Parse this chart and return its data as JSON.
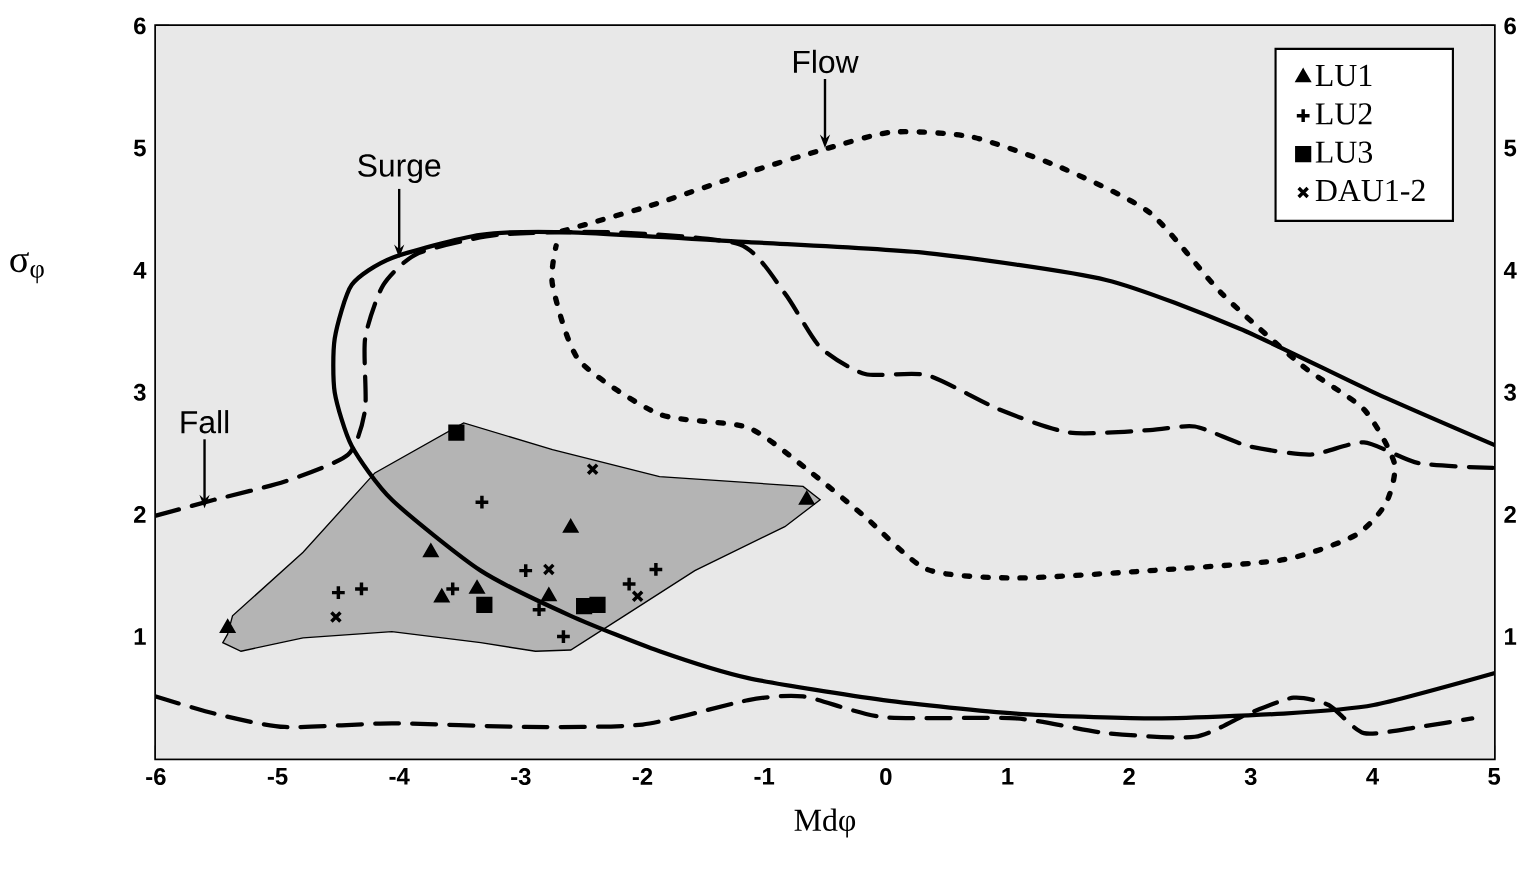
{
  "chart_data": {
    "type": "scatter",
    "xlabel": "Mdφ",
    "ylabel": "σ$_{φ}$",
    "xlim": [
      -6,
      5
    ],
    "xticks": [
      -6,
      -5,
      -4,
      -3,
      -2,
      -1,
      0,
      1,
      2,
      3,
      4,
      5
    ],
    "ylim": [
      0,
      6
    ],
    "yticks": [
      1,
      2,
      3,
      4,
      5,
      6
    ],
    "y2lim": [
      0,
      6
    ],
    "y2ticks": [
      1,
      2,
      3,
      4,
      5,
      6
    ],
    "legend": "top right",
    "annotations": [
      {
        "text": "Fall",
        "x": -5.6,
        "y": 2.05
      },
      {
        "text": "Surge",
        "x": -4.0,
        "y": 4.1
      },
      {
        "text": "Flow",
        "x": -0.5,
        "y": 5.0
      }
    ],
    "series": [
      {
        "type": "area",
        "color": "#b4b4b4",
        "x": [
          -5.41,
          -5.37,
          -4.79,
          -4.2,
          -3.47,
          -2.74,
          -1.86,
          -0.68,
          -0.54,
          -0.83,
          -1.57,
          -2.15,
          -2.59,
          -2.88,
          -3.33,
          -4.06,
          -4.79,
          -5.3,
          -5.45
        ],
        "values": [
          1.02,
          1.17,
          1.69,
          2.34,
          2.75,
          2.53,
          2.31,
          2.23,
          2.12,
          1.9,
          1.54,
          1.17,
          0.89,
          0.88,
          0.95,
          1.04,
          0.99,
          0.88,
          0.95
        ]
      },
      {
        "type": "line",
        "color": "#000000",
        "line_style": "solid",
        "x": [
          5,
          4.01,
          2.91,
          1.81,
          0.34,
          -1.13,
          -2.59,
          -3.33,
          -4.06,
          -4.39,
          -4.53,
          -4.53,
          -4.39,
          -4.06,
          -3.33,
          -2.59,
          -1.86,
          -1.13,
          -0.02,
          1.07,
          2.17,
          3.27,
          4.01,
          5
        ],
        "values": [
          2.57,
          3.0,
          3.52,
          3.92,
          4.14,
          4.23,
          4.31,
          4.29,
          4.1,
          3.88,
          3.44,
          3.0,
          2.56,
          2.12,
          1.54,
          1.17,
          0.88,
          0.66,
          0.48,
          0.37,
          0.33,
          0.37,
          0.44,
          0.7
        ]
      },
      {
        "type": "line",
        "color": "#000000",
        "line_style": "dashed",
        "x": [
          -6,
          -5.52,
          -4.94,
          -4.42,
          -4.28,
          -4.28,
          -4.13,
          -3.84,
          -3.18,
          -2.22,
          -1.2,
          -0.83,
          -0.54,
          -0.17,
          0.34,
          0.93,
          1.51,
          2.17,
          2.54,
          2.98,
          3.49,
          3.93,
          4.38,
          5,
          null,
          -6,
          -5.52,
          -4.94,
          -4.06,
          -2.96,
          -2.0,
          -1.13,
          -0.68,
          -0.02,
          1.07,
          1.81,
          2.54,
          2.98,
          3.35,
          3.64,
          3.93,
          4.38,
          4.82
        ],
        "values": [
          1.99,
          2.12,
          2.27,
          2.49,
          2.86,
          3.44,
          3.88,
          4.14,
          4.29,
          4.31,
          4.21,
          3.81,
          3.37,
          3.15,
          3.14,
          2.86,
          2.67,
          2.69,
          2.72,
          2.56,
          2.49,
          2.59,
          2.42,
          2.38,
          null,
          0.51,
          0.37,
          0.26,
          0.29,
          0.26,
          0.28,
          0.48,
          0.51,
          0.34,
          0.33,
          0.21,
          0.18,
          0.37,
          0.5,
          0.44,
          0.21,
          0.26,
          0.33
        ]
      },
      {
        "type": "line",
        "color": "#000000",
        "line_style": "dotted",
        "x": [
          -2.66,
          -1.93,
          -1.13,
          -0.54,
          0.05,
          0.71,
          1.44,
          2.17,
          2.76,
          3.42,
          3.93,
          4.18,
          4.11,
          3.86,
          3.27,
          2.17,
          1.07,
          0.34,
          -0.17,
          -0.61,
          -1.13,
          -1.86,
          -2.52,
          -2.74,
          -2.71
        ],
        "values": [
          4.32,
          4.53,
          4.8,
          4.98,
          5.13,
          5.09,
          4.84,
          4.47,
          3.81,
          3.22,
          2.86,
          2.42,
          2.09,
          1.83,
          1.63,
          1.54,
          1.48,
          1.55,
          1.98,
          2.34,
          2.71,
          2.82,
          3.26,
          3.88,
          4.2
        ]
      },
      {
        "name": "LU1",
        "color": "#000000",
        "marker": "triangle",
        "x": [
          -5.41,
          -3.74,
          -3.65,
          -3.36,
          -2.59,
          -2.77,
          -0.65
        ],
        "values": [
          1.07,
          1.69,
          1.32,
          1.39,
          1.89,
          1.33,
          2.12
        ]
      },
      {
        "name": "LU2",
        "color": "#000000",
        "marker": "plus",
        "x": [
          -4.5,
          -4.31,
          -3.56,
          -3.32,
          -2.96,
          -2.85,
          -2.65,
          -2.11,
          -1.89
        ],
        "values": [
          1.36,
          1.39,
          1.39,
          2.1,
          1.54,
          1.22,
          1.0,
          1.43,
          1.55
        ]
      },
      {
        "name": "LU3",
        "color": "#000000",
        "marker": "square",
        "x": [
          -3.53,
          -3.3,
          -2.48,
          -2.37
        ],
        "values": [
          2.67,
          1.26,
          1.25,
          1.26
        ]
      },
      {
        "name": "DAU1-2",
        "color": "#000000",
        "marker": "cross",
        "x": [
          -4.52,
          -2.77,
          -2.41,
          -2.04
        ],
        "values": [
          1.16,
          1.55,
          2.37,
          1.33
        ]
      }
    ]
  }
}
